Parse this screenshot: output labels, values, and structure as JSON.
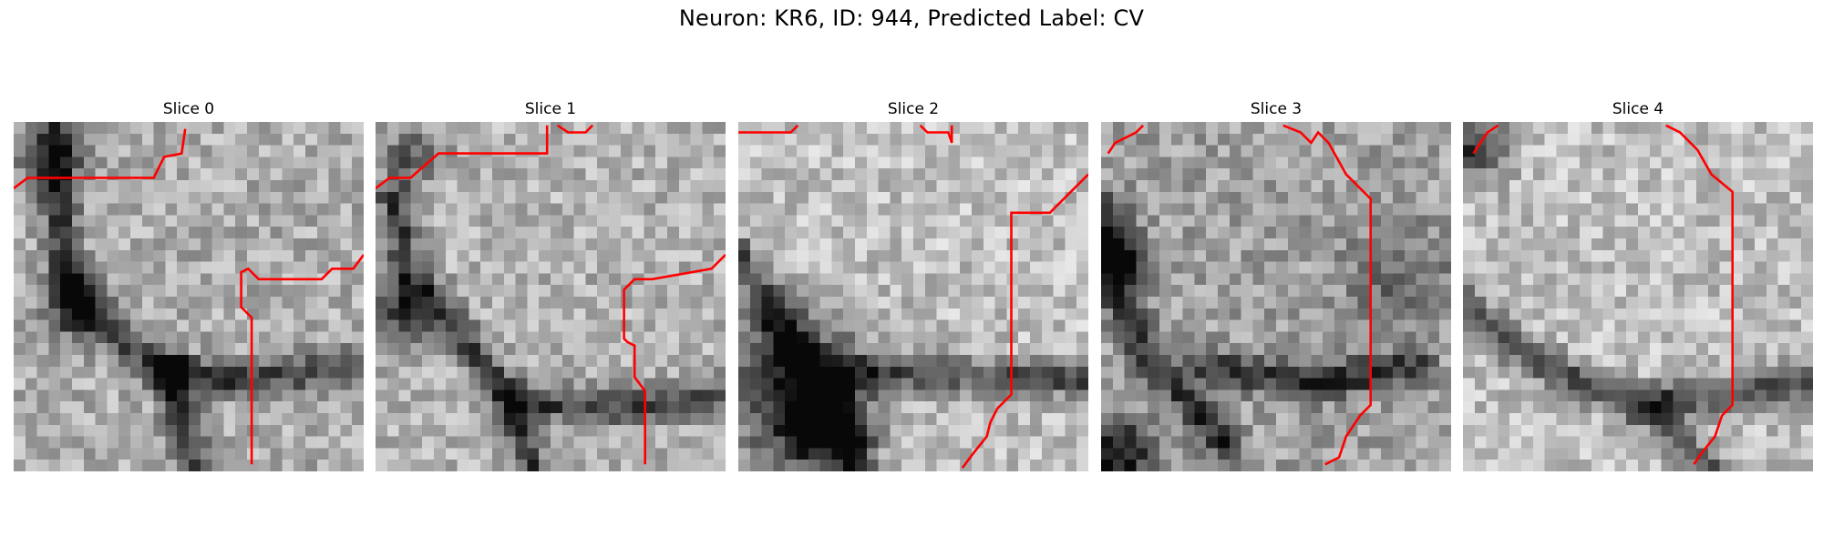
{
  "figure": {
    "suptitle": "Neuron: KR6, ID: 944, Predicted Label: CV"
  },
  "slices": [
    {
      "title": "Slice 0"
    },
    {
      "title": "Slice 1"
    },
    {
      "title": "Slice 2"
    },
    {
      "title": "Slice 3"
    },
    {
      "title": "Slice 4"
    }
  ],
  "colors": {
    "contour": "#ff0000",
    "colormap": "grayscale"
  }
}
